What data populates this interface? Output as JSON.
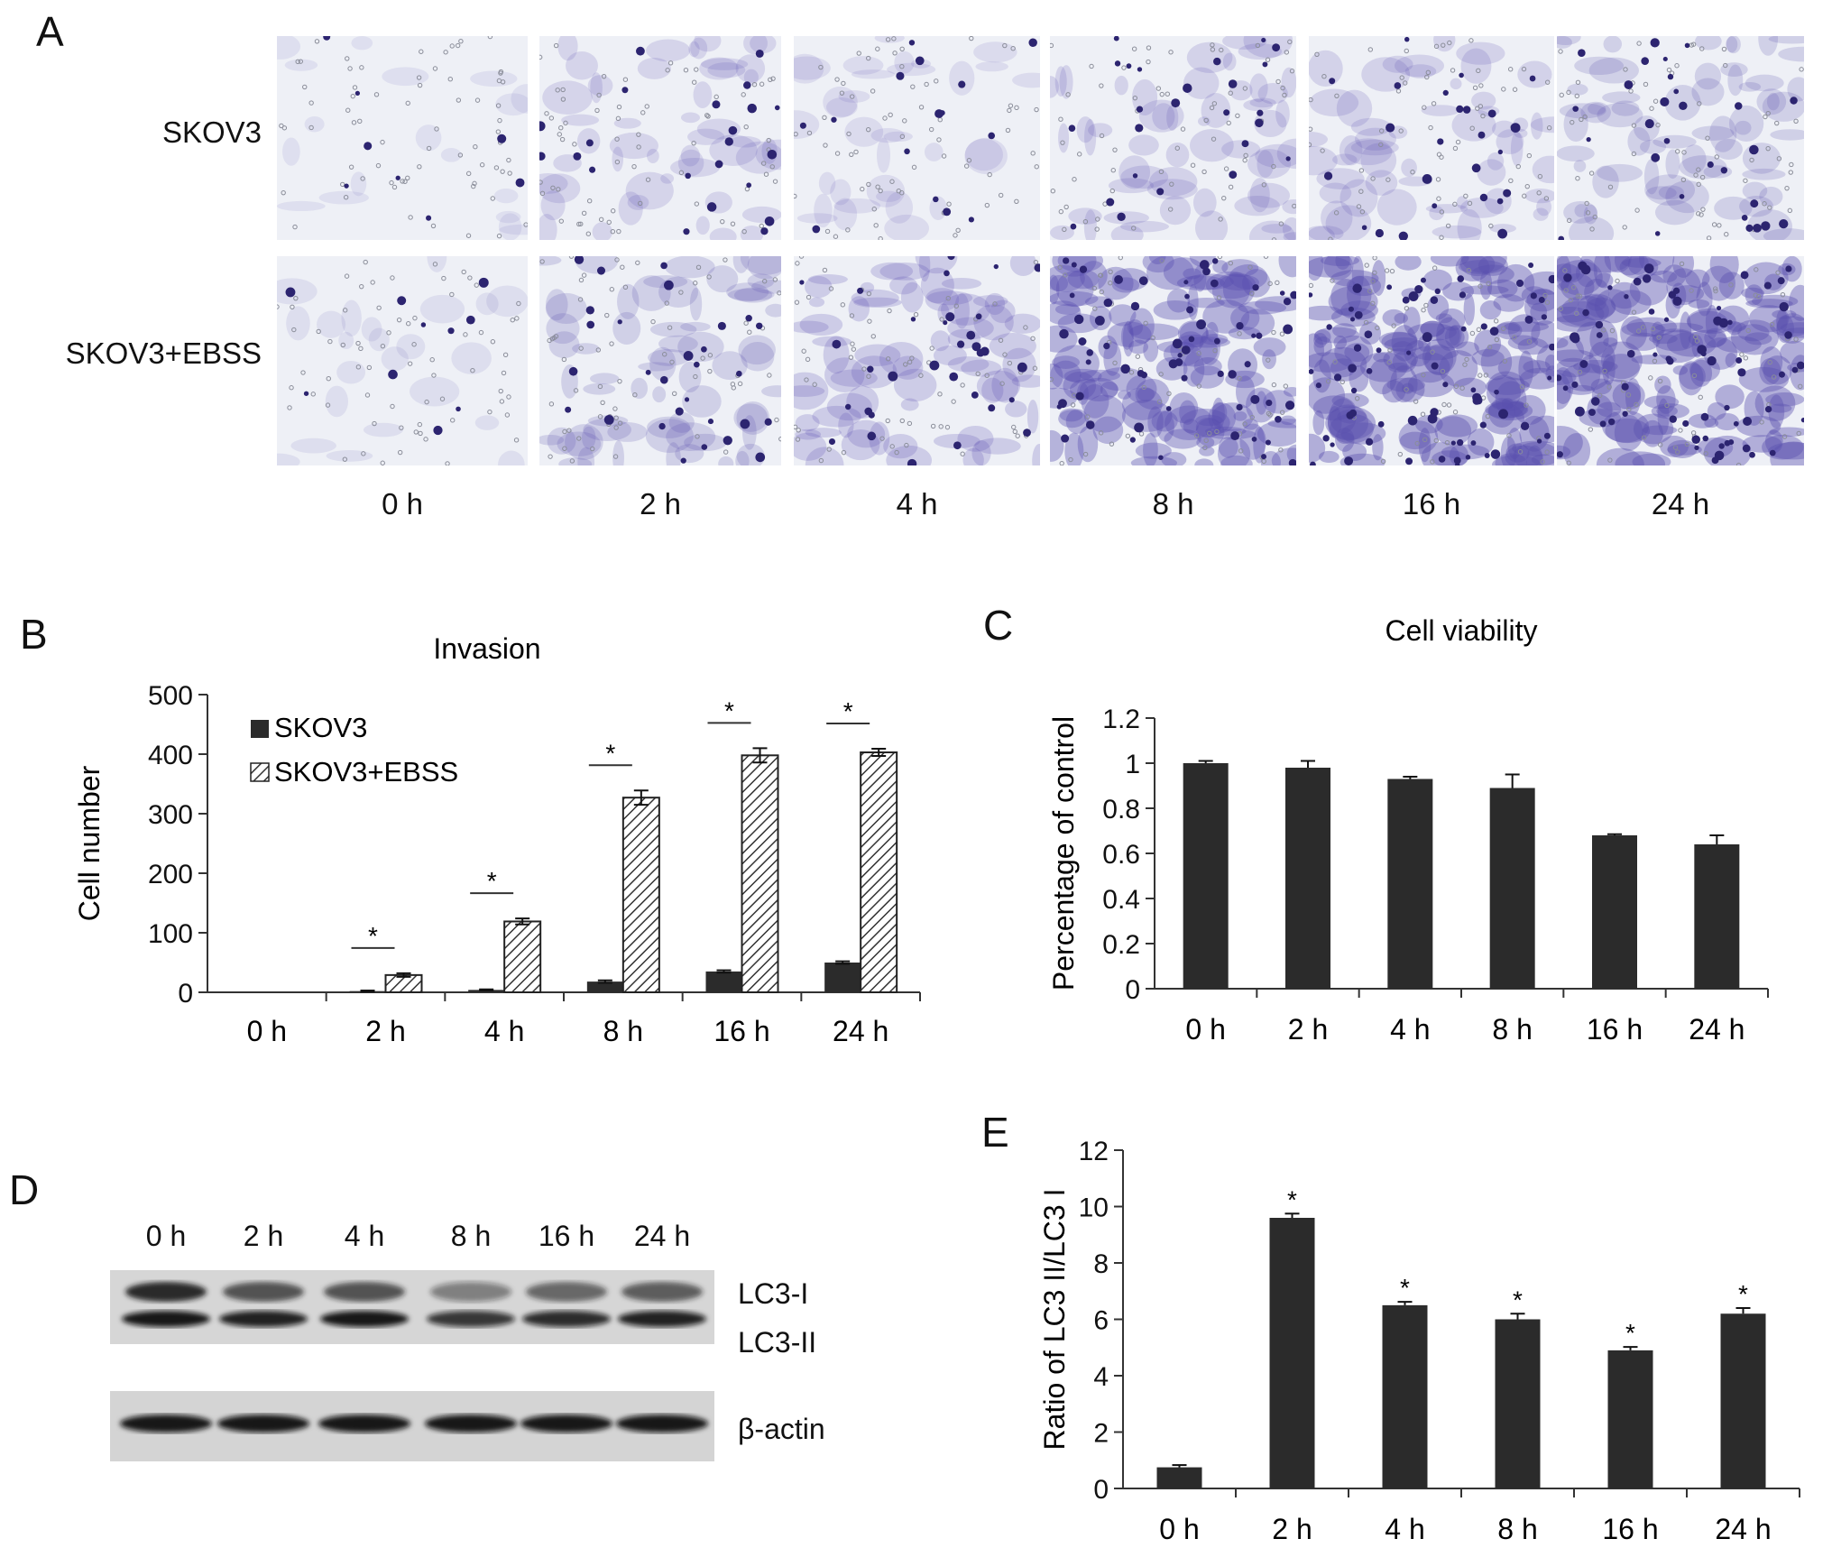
{
  "panel_a": {
    "letter": "A",
    "rows": [
      "SKOV3",
      "SKOV3+EBSS"
    ],
    "times": [
      "0 h",
      "2 h",
      "4 h",
      "8 h",
      "16 h",
      "24 h"
    ],
    "stain_density": [
      [
        0.05,
        0.25,
        0.15,
        0.3,
        0.3,
        0.35
      ],
      [
        0.08,
        0.35,
        0.4,
        0.85,
        0.95,
        0.95
      ]
    ],
    "colors": {
      "stain": "#5a4fb0",
      "stain_dark": "#2c2470",
      "background": "#eef0f6"
    }
  },
  "chart_data": [
    {
      "letter": "B",
      "type": "bar",
      "title": "Invasion",
      "xlabel": "",
      "ylabel": "Cell number",
      "categories": [
        "0 h",
        "2 h",
        "4 h",
        "8 h",
        "16 h",
        "24 h"
      ],
      "ylim": [
        0,
        500
      ],
      "yticks": [
        0,
        100,
        200,
        300,
        400,
        500
      ],
      "series": [
        {
          "name": "SKOV3",
          "values": [
            0,
            2,
            4,
            18,
            35,
            50
          ],
          "errors": [
            0,
            1,
            1,
            2,
            2,
            2
          ]
        },
        {
          "name": "SKOV3+EBSS",
          "values": [
            0,
            29,
            119,
            327,
            398,
            403
          ],
          "errors": [
            0,
            3,
            5,
            12,
            12,
            6
          ]
        }
      ],
      "significance": [
        "",
        "*",
        "*",
        "*",
        "*",
        "*"
      ],
      "legend_position": "top-left"
    },
    {
      "letter": "C",
      "type": "bar",
      "title": "Cell viability",
      "xlabel": "",
      "ylabel": "Percentage of control",
      "categories": [
        "0 h",
        "2 h",
        "4 h",
        "8 h",
        "16 h",
        "24 h"
      ],
      "ylim": [
        0,
        1.2
      ],
      "yticks": [
        "0",
        "0.2",
        "0.4",
        "0.6",
        "0.8",
        "1",
        "1.2"
      ],
      "values": [
        1.0,
        0.98,
        0.93,
        0.89,
        0.68,
        0.64
      ],
      "errors": [
        0.01,
        0.03,
        0.01,
        0.06,
        0.005,
        0.04
      ]
    },
    {
      "letter": "E",
      "type": "bar",
      "title": "",
      "xlabel": "",
      "ylabel": "Ratio of LC3 II/LC3 I",
      "categories": [
        "0 h",
        "2 h",
        "4 h",
        "8 h",
        "16 h",
        "24 h"
      ],
      "ylim": [
        0,
        12
      ],
      "yticks": [
        0,
        2,
        4,
        6,
        8,
        10,
        12
      ],
      "values": [
        0.75,
        9.6,
        6.5,
        6.0,
        4.9,
        6.2
      ],
      "errors": [
        0.08,
        0.15,
        0.12,
        0.2,
        0.12,
        0.2
      ],
      "significance": [
        "",
        "*",
        "*",
        "*",
        "*",
        "*"
      ]
    }
  ],
  "panel_d": {
    "letter": "D",
    "times": [
      "0 h",
      "2 h",
      "4 h",
      "8 h",
      "16 h",
      "24 h"
    ],
    "labels": {
      "lc3_1": "LC3-I",
      "lc3_2": "LC3-II",
      "actin": "β-actin"
    },
    "lc3_1_intensity": [
      0.9,
      0.7,
      0.7,
      0.45,
      0.6,
      0.65
    ],
    "lc3_2_intensity": [
      0.95,
      0.9,
      0.95,
      0.8,
      0.85,
      0.9
    ]
  },
  "colors": {
    "bar_dark": "#2b2b2b",
    "axis": "#333333"
  }
}
